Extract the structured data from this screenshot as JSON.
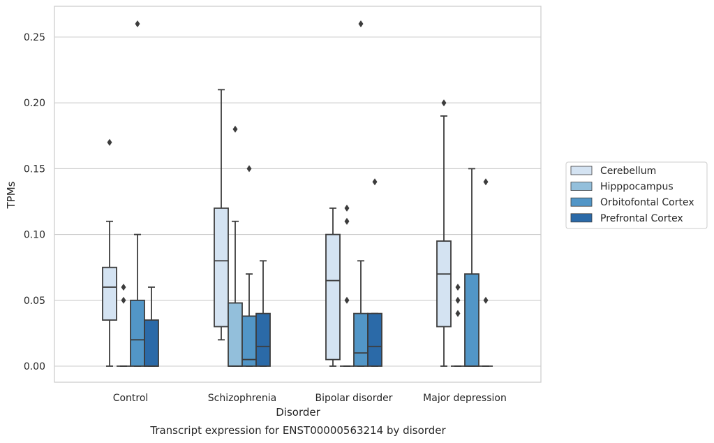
{
  "chart_data": {
    "type": "box",
    "title": "",
    "caption": "Transcript expression for ENST00000563214 by disorder",
    "xlabel": "Disorder",
    "ylabel": "TPMs",
    "ylim": [
      -0.012,
      0.274
    ],
    "yticks": [
      "0.00",
      "0.05",
      "0.10",
      "0.15",
      "0.20",
      "0.25"
    ],
    "grid": true,
    "legend_position": "right, outside plot",
    "categories": [
      "Control",
      "Schizophrenia",
      "Bipolar disorder",
      "Major depression"
    ],
    "series": [
      {
        "name": "Cerebellum",
        "color": "#d4e3f2",
        "boxes": [
          {
            "q1": 0.035,
            "median": 0.06,
            "q3": 0.075,
            "whisker_low": 0.0,
            "whisker_high": 0.11,
            "outliers": [
              0.17
            ]
          },
          {
            "q1": 0.03,
            "median": 0.08,
            "q3": 0.12,
            "whisker_low": 0.02,
            "whisker_high": 0.21,
            "outliers": []
          },
          {
            "q1": 0.005,
            "median": 0.065,
            "q3": 0.1,
            "whisker_low": 0.0,
            "whisker_high": 0.12,
            "outliers": []
          },
          {
            "q1": 0.03,
            "median": 0.07,
            "q3": 0.095,
            "whisker_low": 0.0,
            "whisker_high": 0.19,
            "outliers": [
              0.2
            ]
          }
        ]
      },
      {
        "name": "Hipppocampus",
        "color": "#93bfdb",
        "boxes": [
          {
            "q1": 0.0,
            "median": 0.0,
            "q3": 0.0,
            "whisker_low": 0.0,
            "whisker_high": 0.0,
            "outliers": [
              0.05,
              0.06
            ]
          },
          {
            "q1": 0.0,
            "median": 0.0,
            "q3": 0.048,
            "whisker_low": 0.0,
            "whisker_high": 0.11,
            "outliers": [
              0.18
            ]
          },
          {
            "q1": 0.0,
            "median": 0.0,
            "q3": 0.0,
            "whisker_low": 0.0,
            "whisker_high": 0.0,
            "outliers": [
              0.05,
              0.11,
              0.12
            ]
          },
          {
            "q1": 0.0,
            "median": 0.0,
            "q3": 0.0,
            "whisker_low": 0.0,
            "whisker_high": 0.0,
            "outliers": [
              0.04,
              0.05,
              0.06
            ]
          }
        ]
      },
      {
        "name": "Orbitofontal Cortex",
        "color": "#5296c7",
        "boxes": [
          {
            "q1": 0.0,
            "median": 0.02,
            "q3": 0.05,
            "whisker_low": 0.0,
            "whisker_high": 0.1,
            "outliers": [
              0.26
            ]
          },
          {
            "q1": 0.0,
            "median": 0.005,
            "q3": 0.038,
            "whisker_low": 0.0,
            "whisker_high": 0.07,
            "outliers": [
              0.15
            ]
          },
          {
            "q1": 0.0,
            "median": 0.01,
            "q3": 0.04,
            "whisker_low": 0.0,
            "whisker_high": 0.08,
            "outliers": [
              0.26
            ]
          },
          {
            "q1": 0.0,
            "median": 0.0,
            "q3": 0.07,
            "whisker_low": 0.0,
            "whisker_high": 0.15,
            "outliers": []
          }
        ]
      },
      {
        "name": "Prefrontal Cortex",
        "color": "#2b6aa8",
        "boxes": [
          {
            "q1": 0.0,
            "median": 0.0,
            "q3": 0.035,
            "whisker_low": 0.0,
            "whisker_high": 0.06,
            "outliers": []
          },
          {
            "q1": 0.0,
            "median": 0.015,
            "q3": 0.04,
            "whisker_low": 0.0,
            "whisker_high": 0.08,
            "outliers": []
          },
          {
            "q1": 0.0,
            "median": 0.015,
            "q3": 0.04,
            "whisker_low": 0.0,
            "whisker_high": 0.04,
            "outliers": [
              0.14
            ]
          },
          {
            "q1": 0.0,
            "median": 0.0,
            "q3": 0.0,
            "whisker_low": 0.0,
            "whisker_high": 0.0,
            "outliers": [
              0.05,
              0.14
            ]
          }
        ]
      }
    ]
  }
}
